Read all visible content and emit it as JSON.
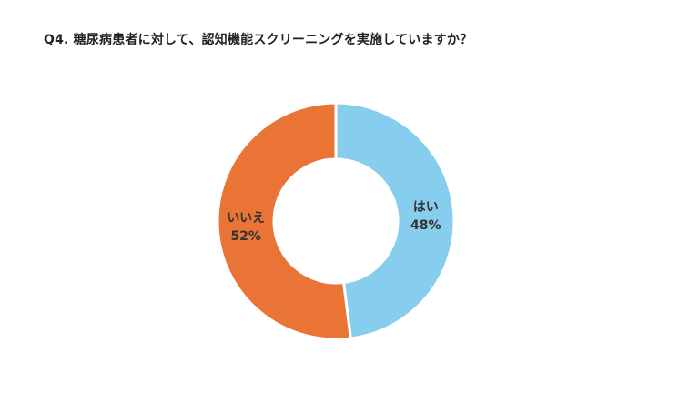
{
  "title": "Q4. 糖尿病患者に対して、認知機能スクリーニングを実施していますか？",
  "chart_data": {
    "type": "pie",
    "variant": "donut",
    "title": "Q4. 糖尿病患者に対して、認知機能スクリーニングを実施していますか？",
    "categories": [
      "はい",
      "いいえ"
    ],
    "values": [
      48,
      52
    ],
    "labels": [
      "48%",
      "52%"
    ],
    "colors": [
      "#87CDED",
      "#EA7436"
    ],
    "legend": "none"
  }
}
